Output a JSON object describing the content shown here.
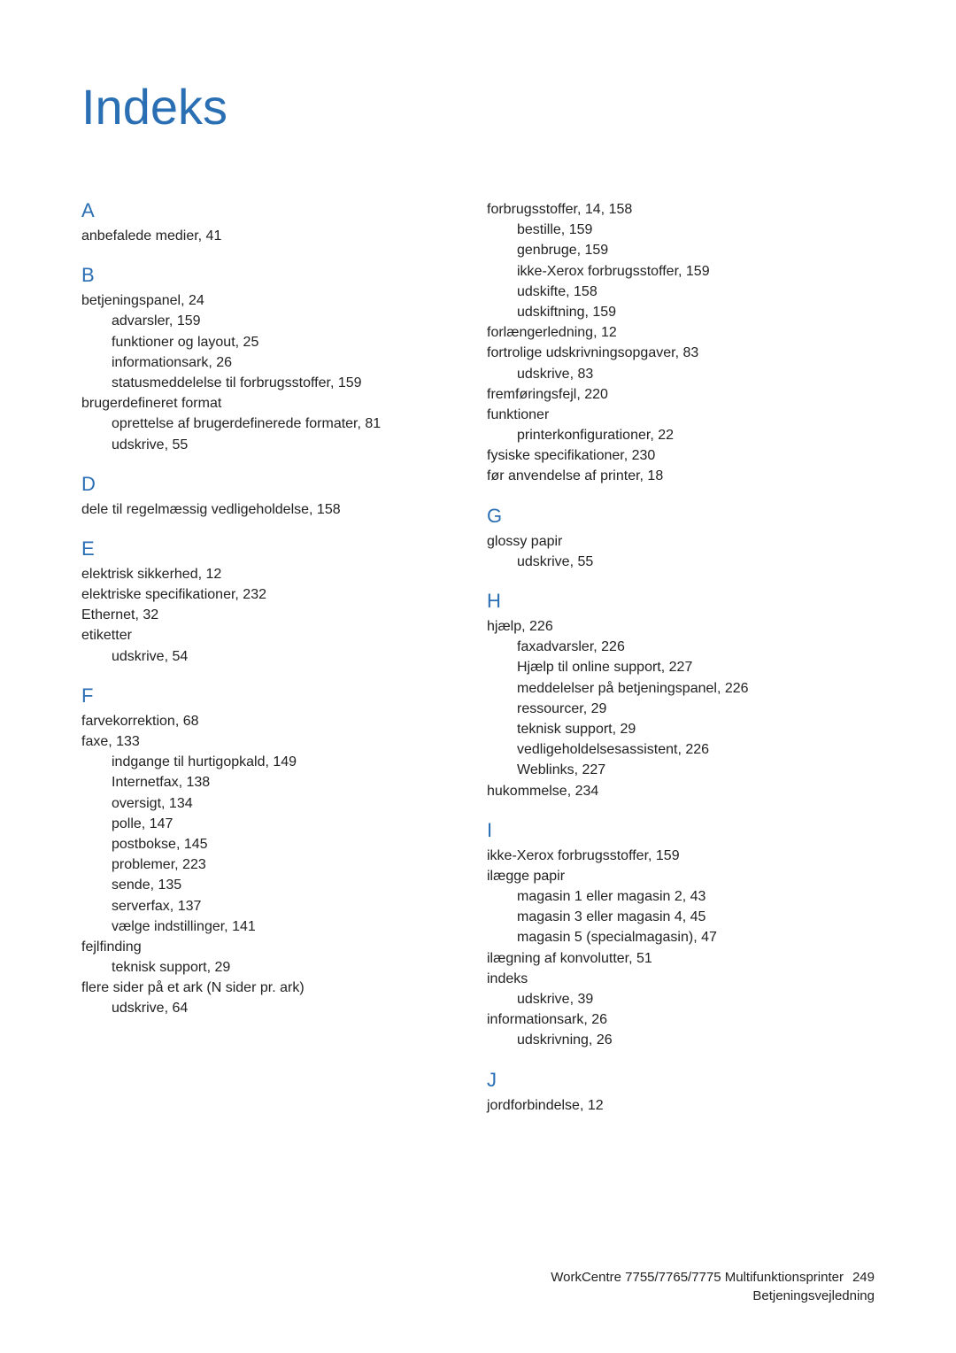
{
  "title": "Indeks",
  "footer": {
    "line1_prefix": "WorkCentre 7755/7765/7775 Multifunktionsprinter",
    "page_number": "249",
    "line2": "Betjeningsvejledning"
  },
  "colors": {
    "accent": "#2a6fb3",
    "text": "#222222",
    "background": "#ffffff"
  },
  "left_column": [
    {
      "type": "letter",
      "text": "A",
      "first": true
    },
    {
      "type": "entry",
      "level": 0,
      "text": "anbefalede medier, 41"
    },
    {
      "type": "letter",
      "text": "B"
    },
    {
      "type": "entry",
      "level": 0,
      "text": "betjeningspanel, 24"
    },
    {
      "type": "entry",
      "level": 1,
      "text": "advarsler, 159"
    },
    {
      "type": "entry",
      "level": 1,
      "text": "funktioner og layout, 25"
    },
    {
      "type": "entry",
      "level": 1,
      "text": "informationsark, 26"
    },
    {
      "type": "entry",
      "level": 1,
      "text": "statusmeddelelse til forbrugsstoffer, 159"
    },
    {
      "type": "entry",
      "level": 0,
      "text": "brugerdefineret format"
    },
    {
      "type": "entry",
      "level": 1,
      "text": "oprettelse af brugerdefinerede formater, 81"
    },
    {
      "type": "entry",
      "level": 1,
      "text": "udskrive, 55"
    },
    {
      "type": "letter",
      "text": "D"
    },
    {
      "type": "entry",
      "level": 0,
      "text": "dele til regelmæssig vedligeholdelse, 158"
    },
    {
      "type": "letter",
      "text": "E"
    },
    {
      "type": "entry",
      "level": 0,
      "text": "elektrisk sikkerhed, 12"
    },
    {
      "type": "entry",
      "level": 0,
      "text": "elektriske specifikationer, 232"
    },
    {
      "type": "entry",
      "level": 0,
      "text": "Ethernet, 32"
    },
    {
      "type": "entry",
      "level": 0,
      "text": "etiketter"
    },
    {
      "type": "entry",
      "level": 1,
      "text": "udskrive, 54"
    },
    {
      "type": "letter",
      "text": "F"
    },
    {
      "type": "entry",
      "level": 0,
      "text": "farvekorrektion, 68"
    },
    {
      "type": "entry",
      "level": 0,
      "text": "faxe, 133"
    },
    {
      "type": "entry",
      "level": 1,
      "text": "indgange til hurtigopkald, 149"
    },
    {
      "type": "entry",
      "level": 1,
      "text": "Internetfax, 138"
    },
    {
      "type": "entry",
      "level": 1,
      "text": "oversigt, 134"
    },
    {
      "type": "entry",
      "level": 1,
      "text": "polle, 147"
    },
    {
      "type": "entry",
      "level": 1,
      "text": "postbokse, 145"
    },
    {
      "type": "entry",
      "level": 1,
      "text": "problemer, 223"
    },
    {
      "type": "entry",
      "level": 1,
      "text": "sende, 135"
    },
    {
      "type": "entry",
      "level": 1,
      "text": "serverfax, 137"
    },
    {
      "type": "entry",
      "level": 1,
      "text": "vælge indstillinger, 141"
    },
    {
      "type": "entry",
      "level": 0,
      "text": "fejlfinding"
    },
    {
      "type": "entry",
      "level": 1,
      "text": "teknisk support, 29"
    },
    {
      "type": "entry",
      "level": 0,
      "text": "flere sider på et ark (N sider pr. ark)"
    },
    {
      "type": "entry",
      "level": 1,
      "text": "udskrive, 64"
    }
  ],
  "right_column": [
    {
      "type": "entry",
      "level": 0,
      "text": "forbrugsstoffer, 14, 158"
    },
    {
      "type": "entry",
      "level": 1,
      "text": "bestille, 159"
    },
    {
      "type": "entry",
      "level": 1,
      "text": "genbruge, 159"
    },
    {
      "type": "entry",
      "level": 1,
      "text": "ikke-Xerox forbrugsstoffer, 159"
    },
    {
      "type": "entry",
      "level": 1,
      "text": "udskifte, 158"
    },
    {
      "type": "entry",
      "level": 1,
      "text": "udskiftning, 159"
    },
    {
      "type": "entry",
      "level": 0,
      "text": "forlængerledning, 12"
    },
    {
      "type": "entry",
      "level": 0,
      "text": "fortrolige udskrivningsopgaver, 83"
    },
    {
      "type": "entry",
      "level": 1,
      "text": "udskrive, 83"
    },
    {
      "type": "entry",
      "level": 0,
      "text": "fremføringsfejl, 220"
    },
    {
      "type": "entry",
      "level": 0,
      "text": "funktioner"
    },
    {
      "type": "entry",
      "level": 1,
      "text": "printerkonfigurationer, 22"
    },
    {
      "type": "entry",
      "level": 0,
      "text": "fysiske specifikationer, 230"
    },
    {
      "type": "entry",
      "level": 0,
      "text": "før anvendelse af printer, 18"
    },
    {
      "type": "letter",
      "text": "G"
    },
    {
      "type": "entry",
      "level": 0,
      "text": "glossy papir"
    },
    {
      "type": "entry",
      "level": 1,
      "text": "udskrive, 55"
    },
    {
      "type": "letter",
      "text": "H"
    },
    {
      "type": "entry",
      "level": 0,
      "text": "hjælp, 226"
    },
    {
      "type": "entry",
      "level": 1,
      "text": "faxadvarsler, 226"
    },
    {
      "type": "entry",
      "level": 1,
      "text": "Hjælp til online support, 227"
    },
    {
      "type": "entry",
      "level": 1,
      "text": "meddelelser på betjeningspanel, 226"
    },
    {
      "type": "entry",
      "level": 1,
      "text": "ressourcer, 29"
    },
    {
      "type": "entry",
      "level": 1,
      "text": "teknisk support, 29"
    },
    {
      "type": "entry",
      "level": 1,
      "text": "vedligeholdelsesassistent, 226"
    },
    {
      "type": "entry",
      "level": 1,
      "text": "Weblinks, 227"
    },
    {
      "type": "entry",
      "level": 0,
      "text": "hukommelse, 234"
    },
    {
      "type": "letter",
      "text": "I"
    },
    {
      "type": "entry",
      "level": 0,
      "text": "ikke-Xerox forbrugsstoffer, 159"
    },
    {
      "type": "entry",
      "level": 0,
      "text": "ilægge papir"
    },
    {
      "type": "entry",
      "level": 1,
      "text": "magasin 1 eller magasin 2, 43"
    },
    {
      "type": "entry",
      "level": 1,
      "text": "magasin 3 eller magasin 4, 45"
    },
    {
      "type": "entry",
      "level": 1,
      "text": "magasin 5 (specialmagasin), 47"
    },
    {
      "type": "entry",
      "level": 0,
      "text": "ilægning af konvolutter, 51"
    },
    {
      "type": "entry",
      "level": 0,
      "text": "indeks"
    },
    {
      "type": "entry",
      "level": 1,
      "text": "udskrive, 39"
    },
    {
      "type": "entry",
      "level": 0,
      "text": "informationsark, 26"
    },
    {
      "type": "entry",
      "level": 1,
      "text": "udskrivning, 26"
    },
    {
      "type": "letter",
      "text": "J"
    },
    {
      "type": "entry",
      "level": 0,
      "text": "jordforbindelse, 12"
    }
  ]
}
